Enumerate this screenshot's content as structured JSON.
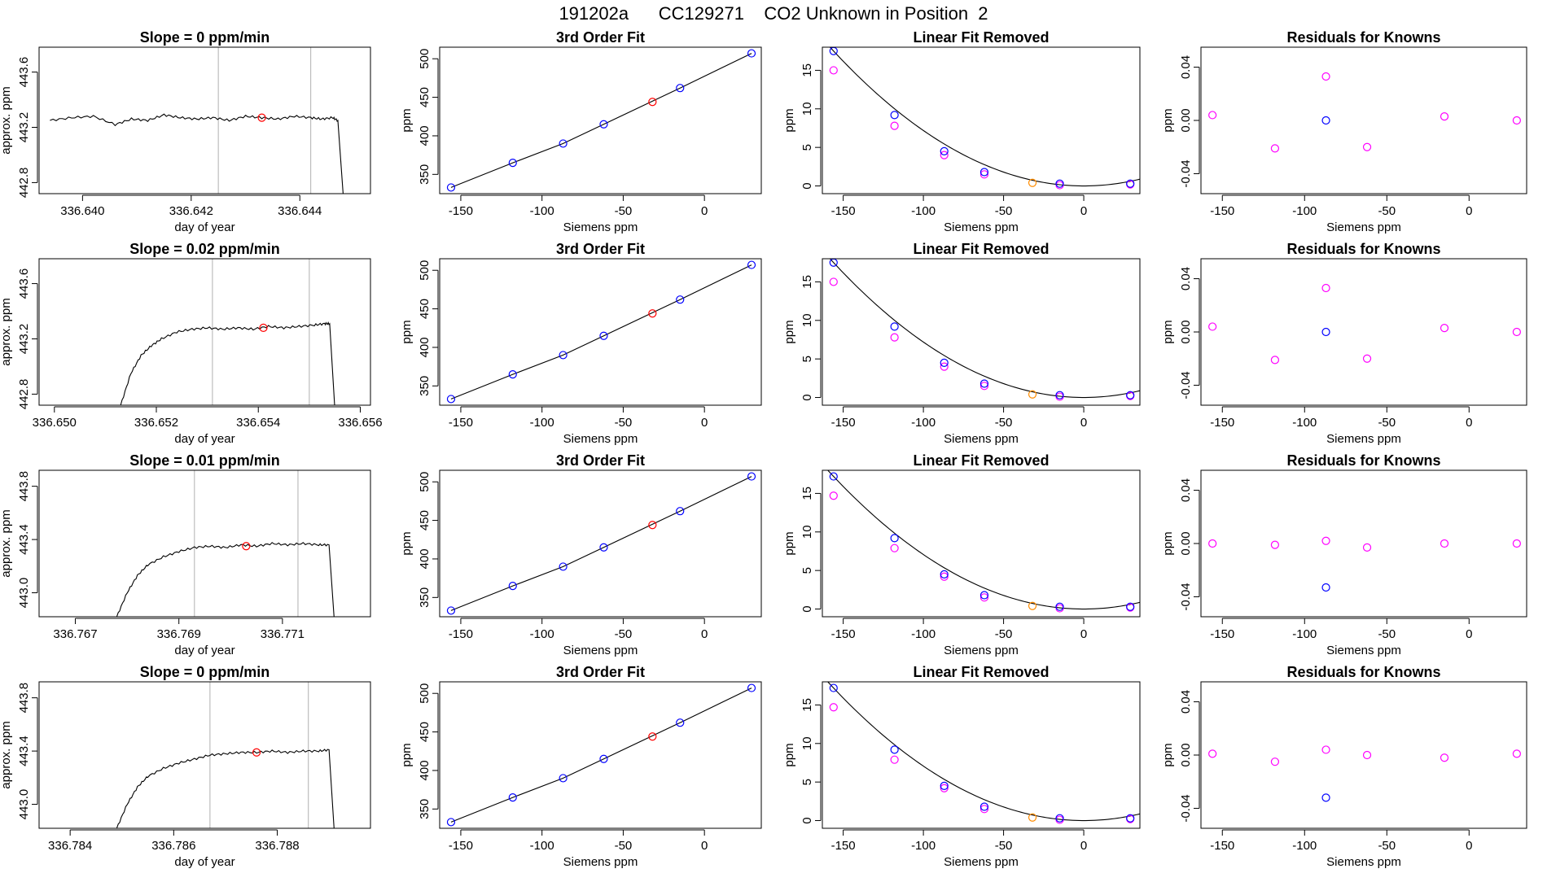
{
  "page_title": "191202a      CC129271    CO2 Unknown in Position  2",
  "colors": {
    "trace": "#000000",
    "vline": "#bdbdbd",
    "unknown": "#ff0000",
    "known": "#0000ff",
    "fit_point": "#ff00ff",
    "unknown_fit": "#ff8c00",
    "curve": "#000000"
  },
  "chart_data": [
    {
      "type": "line",
      "title": "Slope =  0  ppm/min",
      "xlabel": "day of year",
      "ylabel": "approx. ppm",
      "xlim": [
        336.6392,
        336.6453
      ],
      "ylim": [
        442.72,
        443.78
      ],
      "xticks": [
        336.64,
        336.642,
        336.644
      ],
      "xtick_labels": [
        "336.640",
        "336.642",
        "336.644"
      ],
      "yticks": [
        442.8,
        443.2,
        443.6
      ],
      "ytick_labels": [
        "442.8",
        "443.2",
        "443.6"
      ],
      "x": [
        336.6394,
        336.6398,
        336.6402,
        336.6406,
        336.6409,
        336.6412,
        336.6415,
        336.6418,
        336.6421,
        336.6424,
        336.6427,
        336.643,
        336.6433,
        336.6436,
        336.6439,
        336.6442,
        336.6444,
        336.6446,
        336.6447,
        336.6448
      ],
      "y": [
        443.25,
        443.27,
        443.28,
        443.22,
        443.26,
        443.25,
        443.29,
        443.27,
        443.26,
        443.27,
        443.25,
        443.28,
        443.27,
        443.26,
        443.28,
        443.27,
        443.26,
        443.27,
        443.25,
        442.7
      ],
      "vlines": [
        336.6425,
        336.6442
      ],
      "unknown_point": [
        336.6433,
        443.27
      ]
    },
    {
      "type": "scatter",
      "title": "3rd Order Fit",
      "xlabel": "Siemens ppm",
      "ylabel": "ppm",
      "xlim": [
        -163,
        35
      ],
      "ylim": [
        325,
        515
      ],
      "xticks": [
        -150,
        -100,
        -50,
        0
      ],
      "xtick_labels": [
        "-150",
        "-100",
        "-50",
        "0"
      ],
      "yticks": [
        350,
        400,
        450,
        500
      ],
      "ytick_labels": [
        "350",
        "400",
        "450",
        "500"
      ],
      "knowns_x": [
        -156,
        -118,
        -87,
        -62,
        -15,
        29
      ],
      "knowns_y": [
        333,
        365,
        390,
        415,
        462,
        507
      ],
      "unknown": [
        -32,
        444
      ]
    },
    {
      "type": "scatter",
      "title": "Linear Fit Removed",
      "xlabel": "Siemens ppm",
      "ylabel": "ppm",
      "xlim": [
        -163,
        35
      ],
      "ylim": [
        -1,
        18
      ],
      "xticks": [
        -150,
        -100,
        -50,
        0
      ],
      "xtick_labels": [
        "-150",
        "-100",
        "-50",
        "0"
      ],
      "yticks": [
        0,
        5,
        10,
        15
      ],
      "ytick_labels": [
        "0",
        "5",
        "10",
        "15"
      ],
      "knowns_x": [
        -156,
        -118,
        -87,
        -62,
        -15,
        29
      ],
      "knowns_y": [
        17.5,
        9.2,
        4.5,
        1.8,
        0.3,
        0.3
      ],
      "fit_x": [
        -156,
        -118,
        -87,
        -62,
        -15,
        29
      ],
      "fit_y": [
        15.0,
        7.8,
        4.0,
        1.5,
        0.1,
        0.2
      ],
      "unknown": [
        -32,
        0.4
      ]
    },
    {
      "type": "scatter",
      "title": "Residuals for Knowns",
      "xlabel": "Siemens ppm",
      "ylabel": "ppm",
      "xlim": [
        -163,
        35
      ],
      "ylim": [
        -0.055,
        0.055
      ],
      "xticks": [
        -150,
        -100,
        -50,
        0
      ],
      "xtick_labels": [
        "-150",
        "-100",
        "-50",
        "0"
      ],
      "yticks": [
        -0.04,
        0.0,
        0.04
      ],
      "ytick_labels": [
        "-0.04",
        "0.00",
        "0.04"
      ],
      "residuals_x": [
        -156,
        -118,
        -87,
        -62,
        -15,
        29
      ],
      "residuals_y": [
        0.004,
        -0.021,
        0.033,
        -0.02,
        0.003,
        0.0
      ],
      "blue_point": [
        -87,
        0.0
      ]
    },
    {
      "type": "line",
      "title": "Slope =  0.02  ppm/min",
      "xlabel": "day of year",
      "ylabel": "approx. ppm",
      "xlim": [
        336.6497,
        336.6562
      ],
      "ylim": [
        442.72,
        443.78
      ],
      "xticks": [
        336.65,
        336.652,
        336.654,
        336.656
      ],
      "xtick_labels": [
        "336.650",
        "336.652",
        "336.654",
        "336.656"
      ],
      "yticks": [
        442.8,
        443.2,
        443.6
      ],
      "ytick_labels": [
        "442.8",
        "443.2",
        "443.6"
      ],
      "x": [
        336.6513,
        336.6515,
        336.6517,
        336.6519,
        336.6521,
        336.6524,
        336.6527,
        336.653,
        336.6533,
        336.6536,
        336.6539,
        336.6542,
        336.6545,
        336.6548,
        336.6551,
        336.6553,
        336.6554,
        336.6555
      ],
      "y": [
        442.72,
        442.95,
        443.08,
        443.15,
        443.2,
        443.25,
        443.27,
        443.28,
        443.27,
        443.28,
        443.27,
        443.29,
        443.28,
        443.29,
        443.3,
        443.31,
        443.31,
        442.7
      ],
      "vlines": [
        336.6531,
        336.655
      ],
      "unknown_point": [
        336.6541,
        443.28
      ]
    },
    {
      "type": "scatter",
      "title": "3rd Order Fit",
      "xlabel": "Siemens ppm",
      "ylabel": "ppm",
      "xlim": [
        -163,
        35
      ],
      "ylim": [
        325,
        515
      ],
      "xticks": [
        -150,
        -100,
        -50,
        0
      ],
      "xtick_labels": [
        "-150",
        "-100",
        "-50",
        "0"
      ],
      "yticks": [
        350,
        400,
        450,
        500
      ],
      "ytick_labels": [
        "350",
        "400",
        "450",
        "500"
      ],
      "knowns_x": [
        -156,
        -118,
        -87,
        -62,
        -15,
        29
      ],
      "knowns_y": [
        333,
        365,
        390,
        415,
        462,
        507
      ],
      "unknown": [
        -32,
        444
      ]
    },
    {
      "type": "scatter",
      "title": "Linear Fit Removed",
      "xlabel": "Siemens ppm",
      "ylabel": "ppm",
      "xlim": [
        -163,
        35
      ],
      "ylim": [
        -1,
        18
      ],
      "xticks": [
        -150,
        -100,
        -50,
        0
      ],
      "xtick_labels": [
        "-150",
        "-100",
        "-50",
        "0"
      ],
      "yticks": [
        0,
        5,
        10,
        15
      ],
      "ytick_labels": [
        "0",
        "5",
        "10",
        "15"
      ],
      "knowns_x": [
        -156,
        -118,
        -87,
        -62,
        -15,
        29
      ],
      "knowns_y": [
        17.5,
        9.2,
        4.5,
        1.8,
        0.3,
        0.3
      ],
      "fit_x": [
        -156,
        -118,
        -87,
        -62,
        -15,
        29
      ],
      "fit_y": [
        15.0,
        7.8,
        4.0,
        1.5,
        0.1,
        0.2
      ],
      "unknown": [
        -32,
        0.4
      ]
    },
    {
      "type": "scatter",
      "title": "Residuals for Knowns",
      "xlabel": "Siemens ppm",
      "ylabel": "ppm",
      "xlim": [
        -163,
        35
      ],
      "ylim": [
        -0.055,
        0.055
      ],
      "xticks": [
        -150,
        -100,
        -50,
        0
      ],
      "xtick_labels": [
        "-150",
        "-100",
        "-50",
        "0"
      ],
      "yticks": [
        -0.04,
        0.0,
        0.04
      ],
      "ytick_labels": [
        "-0.04",
        "0.00",
        "0.04"
      ],
      "residuals_x": [
        -156,
        -118,
        -87,
        -62,
        -15,
        29
      ],
      "residuals_y": [
        0.004,
        -0.021,
        0.033,
        -0.02,
        0.003,
        0.0
      ],
      "blue_point": [
        -87,
        0.0
      ]
    },
    {
      "type": "line",
      "title": "Slope =  0.01  ppm/min",
      "xlabel": "day of year",
      "ylabel": "approx. ppm",
      "xlim": [
        336.7663,
        336.7727
      ],
      "ylim": [
        442.82,
        443.92
      ],
      "xticks": [
        336.767,
        336.769,
        336.771
      ],
      "xtick_labels": [
        "336.767",
        "336.769",
        "336.771"
      ],
      "yticks": [
        443.0,
        443.4,
        443.8
      ],
      "ytick_labels": [
        "443.0",
        "443.4",
        "443.8"
      ],
      "x": [
        336.7678,
        336.768,
        336.7682,
        336.7684,
        336.7687,
        336.769,
        336.7693,
        336.7696,
        336.7699,
        336.7702,
        336.7705,
        336.7708,
        336.7711,
        336.7714,
        336.7717,
        336.7719,
        336.772
      ],
      "y": [
        442.82,
        443.0,
        443.13,
        443.21,
        443.27,
        443.31,
        443.34,
        443.35,
        443.34,
        443.36,
        443.35,
        443.37,
        443.36,
        443.37,
        443.36,
        443.36,
        442.8
      ],
      "vlines": [
        336.7693,
        336.7713
      ],
      "unknown_point": [
        336.7703,
        443.35
      ]
    },
    {
      "type": "scatter",
      "title": "3rd Order Fit",
      "xlabel": "Siemens ppm",
      "ylabel": "ppm",
      "xlim": [
        -163,
        35
      ],
      "ylim": [
        325,
        515
      ],
      "xticks": [
        -150,
        -100,
        -50,
        0
      ],
      "xtick_labels": [
        "-150",
        "-100",
        "-50",
        "0"
      ],
      "yticks": [
        350,
        400,
        450,
        500
      ],
      "ytick_labels": [
        "350",
        "400",
        "450",
        "500"
      ],
      "knowns_x": [
        -156,
        -118,
        -87,
        -62,
        -15,
        29
      ],
      "knowns_y": [
        333,
        365,
        390,
        415,
        462,
        507
      ],
      "unknown": [
        -32,
        444
      ]
    },
    {
      "type": "scatter",
      "title": "Linear Fit Removed",
      "xlabel": "Siemens ppm",
      "ylabel": "ppm",
      "xlim": [
        -163,
        35
      ],
      "ylim": [
        -1,
        18
      ],
      "xticks": [
        -150,
        -100,
        -50,
        0
      ],
      "xtick_labels": [
        "-150",
        "-100",
        "-50",
        "0"
      ],
      "yticks": [
        0,
        5,
        10,
        15
      ],
      "ytick_labels": [
        "0",
        "5",
        "10",
        "15"
      ],
      "knowns_x": [
        -156,
        -118,
        -87,
        -62,
        -15,
        29
      ],
      "knowns_y": [
        17.2,
        9.2,
        4.5,
        1.8,
        0.3,
        0.3
      ],
      "fit_x": [
        -156,
        -118,
        -87,
        -62,
        -15,
        29
      ],
      "fit_y": [
        14.7,
        7.9,
        4.2,
        1.5,
        0.1,
        0.2
      ],
      "unknown": [
        -32,
        0.4
      ]
    },
    {
      "type": "scatter",
      "title": "Residuals for Knowns",
      "xlabel": "Siemens ppm",
      "ylabel": "ppm",
      "xlim": [
        -163,
        35
      ],
      "ylim": [
        -0.055,
        0.055
      ],
      "xticks": [
        -150,
        -100,
        -50,
        0
      ],
      "xtick_labels": [
        "-150",
        "-100",
        "-50",
        "0"
      ],
      "yticks": [
        -0.04,
        0.0,
        0.04
      ],
      "ytick_labels": [
        "-0.04",
        "0.00",
        "0.04"
      ],
      "residuals_x": [
        -156,
        -118,
        -87,
        -62,
        -15,
        29
      ],
      "residuals_y": [
        0.0,
        -0.001,
        0.002,
        -0.003,
        0.0,
        0.0
      ],
      "blue_point": [
        -87,
        -0.033
      ]
    },
    {
      "type": "line",
      "title": "Slope =  0  ppm/min",
      "xlabel": "day of year",
      "ylabel": "approx. ppm",
      "xlim": [
        336.7834,
        336.7898
      ],
      "ylim": [
        442.82,
        443.92
      ],
      "xticks": [
        336.784,
        336.786,
        336.788
      ],
      "xtick_labels": [
        "336.784",
        "336.786",
        "336.788"
      ],
      "yticks": [
        443.0,
        443.4,
        443.8
      ],
      "ytick_labels": [
        "443.0",
        "443.4",
        "443.8"
      ],
      "x": [
        336.7849,
        336.7851,
        336.7853,
        336.7855,
        336.7858,
        336.7861,
        336.7864,
        336.7867,
        336.787,
        336.7873,
        336.7876,
        336.7879,
        336.7882,
        336.7885,
        336.7888,
        336.789,
        336.7891
      ],
      "y": [
        442.82,
        443.0,
        443.13,
        443.21,
        443.27,
        443.31,
        443.34,
        443.37,
        443.38,
        443.39,
        443.39,
        443.4,
        443.39,
        443.4,
        443.4,
        443.41,
        442.8
      ],
      "vlines": [
        336.7867,
        336.7886
      ],
      "unknown_point": [
        336.7876,
        443.39
      ]
    },
    {
      "type": "scatter",
      "title": "3rd Order Fit",
      "xlabel": "Siemens ppm",
      "ylabel": "ppm",
      "xlim": [
        -163,
        35
      ],
      "ylim": [
        325,
        515
      ],
      "xticks": [
        -150,
        -100,
        -50,
        0
      ],
      "xtick_labels": [
        "-150",
        "-100",
        "-50",
        "0"
      ],
      "yticks": [
        350,
        400,
        450,
        500
      ],
      "ytick_labels": [
        "350",
        "400",
        "450",
        "500"
      ],
      "knowns_x": [
        -156,
        -118,
        -87,
        -62,
        -15,
        29
      ],
      "knowns_y": [
        333,
        365,
        390,
        415,
        462,
        507
      ],
      "unknown": [
        -32,
        444
      ]
    },
    {
      "type": "scatter",
      "title": "Linear Fit Removed",
      "xlabel": "Siemens ppm",
      "ylabel": "ppm",
      "xlim": [
        -163,
        35
      ],
      "ylim": [
        -1,
        18
      ],
      "xticks": [
        -150,
        -100,
        -50,
        0
      ],
      "xtick_labels": [
        "-150",
        "-100",
        "-50",
        "0"
      ],
      "yticks": [
        0,
        5,
        10,
        15
      ],
      "ytick_labels": [
        "0",
        "5",
        "10",
        "15"
      ],
      "knowns_x": [
        -156,
        -118,
        -87,
        -62,
        -15,
        29
      ],
      "knowns_y": [
        17.2,
        9.2,
        4.5,
        1.8,
        0.3,
        0.3
      ],
      "fit_x": [
        -156,
        -118,
        -87,
        -62,
        -15,
        29
      ],
      "fit_y": [
        14.7,
        7.9,
        4.2,
        1.5,
        0.1,
        0.2
      ],
      "unknown": [
        -32,
        0.4
      ]
    },
    {
      "type": "scatter",
      "title": "Residuals for Knowns",
      "xlabel": "Siemens ppm",
      "ylabel": "ppm",
      "xlim": [
        -163,
        35
      ],
      "ylim": [
        -0.055,
        0.055
      ],
      "xticks": [
        -150,
        -100,
        -50,
        0
      ],
      "xtick_labels": [
        "-150",
        "-100",
        "-50",
        "0"
      ],
      "yticks": [
        -0.04,
        0.0,
        0.04
      ],
      "ytick_labels": [
        "-0.04",
        "0.00",
        "0.04"
      ],
      "residuals_x": [
        -156,
        -118,
        -87,
        -62,
        -15,
        29
      ],
      "residuals_y": [
        0.001,
        -0.005,
        0.004,
        0.0,
        -0.002,
        0.001
      ],
      "blue_point": [
        -87,
        -0.032
      ]
    }
  ]
}
